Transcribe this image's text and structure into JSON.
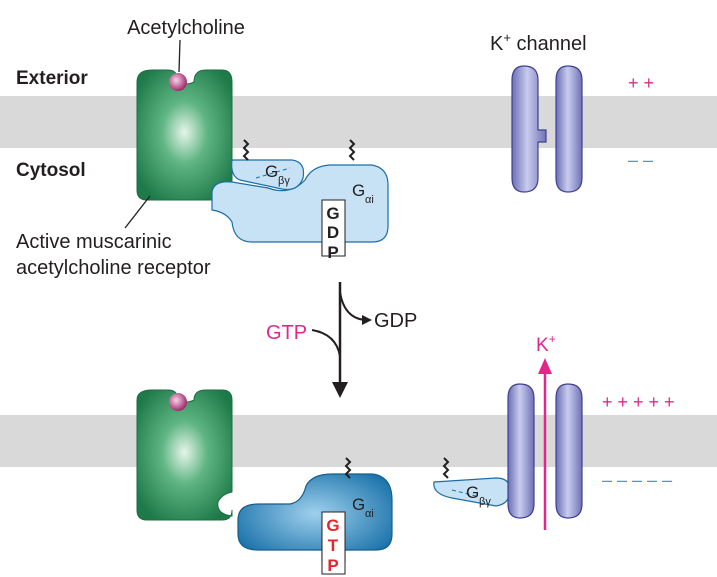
{
  "labels": {
    "acetylcholine": "Acetylcholine",
    "k_channel_prefix": "K",
    "k_channel_plus": "+",
    "k_channel_suffix": " channel",
    "exterior": "Exterior",
    "cytosol": "Cytosol",
    "receptor_line1": "Active muscarinic",
    "receptor_line2": "acetylcholine receptor",
    "gtp_in": "GTP",
    "gdp_out": "GDP",
    "k_ion": "K",
    "k_ion_plus": "+"
  },
  "gproteins": {
    "g": "G",
    "beta_gamma": "βγ",
    "alpha_i": "αi"
  },
  "nucleotides": {
    "gdp": [
      "G",
      "D",
      "P"
    ],
    "gtp": [
      "G",
      "T",
      "P"
    ]
  },
  "charges": {
    "top_exterior": "+ +",
    "top_cytosol": "– –",
    "bottom_exterior": "+ + + + +",
    "bottom_cytosol": "– – – – –"
  },
  "colors": {
    "membrane": "#d9d9da",
    "receptor_dark": "#1f7a4a",
    "receptor_light": "#d9f0e0",
    "ligand": "#b2337a",
    "channel": "#7b7fc0",
    "channel_light": "#c9cbee",
    "gprotein_light": "#c3e0f3",
    "gprotein_dark": "#1b77b0",
    "magenta": "#e0288a",
    "blue_charge": "#2aa7df",
    "gtp_red": "#e2262b"
  }
}
